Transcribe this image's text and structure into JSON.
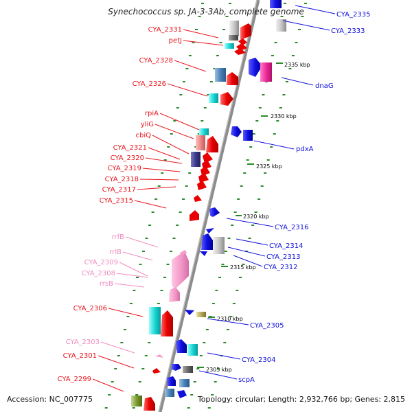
{
  "title": "Synechococcus sp. JA-3-3Ab, complete genome",
  "accession": "Accession: NC_007775",
  "topology": "Topology: circular; Length: 2,932,766 bp; Genes: 2,815",
  "colors": {
    "forward_label": "#e8141c",
    "reverse_label": "#1010dd",
    "rna_label": "#f08cbe",
    "backbone": "#8c8c8c",
    "tick": "#2a8a2a"
  },
  "scale_ticks": [
    {
      "label": "2335 kbp"
    },
    {
      "label": "2330 kbp"
    },
    {
      "label": "2325 kbp"
    },
    {
      "label": "2320 kbp"
    },
    {
      "label": "2315 kbp"
    },
    {
      "label": "2310 kbp"
    },
    {
      "label": "2305 kbp"
    }
  ],
  "left_labels": [
    {
      "text": "CYA_2331",
      "type": "cds"
    },
    {
      "text": "petJ",
      "type": "cds"
    },
    {
      "text": "CYA_2328",
      "type": "cds"
    },
    {
      "text": "CYA_2326",
      "type": "cds"
    },
    {
      "text": "rpiA",
      "type": "cds"
    },
    {
      "text": "yliG",
      "type": "cds"
    },
    {
      "text": "cbiQ",
      "type": "cds"
    },
    {
      "text": "CYA_2321",
      "type": "cds"
    },
    {
      "text": "CYA_2320",
      "type": "cds"
    },
    {
      "text": "CYA_2319",
      "type": "cds"
    },
    {
      "text": "CYA_2318",
      "type": "cds"
    },
    {
      "text": "CYA_2317",
      "type": "cds"
    },
    {
      "text": "CYA_2315",
      "type": "cds"
    },
    {
      "text": "rrfB",
      "type": "rna"
    },
    {
      "text": "rrlB",
      "type": "rna"
    },
    {
      "text": "CYA_2309",
      "type": "rna"
    },
    {
      "text": "CYA_2308",
      "type": "rna"
    },
    {
      "text": "rrsB",
      "type": "rna"
    },
    {
      "text": "CYA_2306",
      "type": "cds"
    },
    {
      "text": "CYA_2303",
      "type": "rna"
    },
    {
      "text": "CYA_2301",
      "type": "cds"
    },
    {
      "text": "CYA_2299",
      "type": "cds"
    }
  ],
  "right_labels": [
    {
      "text": "CYA_2335"
    },
    {
      "text": "CYA_2333"
    },
    {
      "text": "dnaG"
    },
    {
      "text": "pdxA"
    },
    {
      "text": "CYA_2316"
    },
    {
      "text": "CYA_2314"
    },
    {
      "text": "CYA_2313"
    },
    {
      "text": "CYA_2312"
    },
    {
      "text": "CYA_2305"
    },
    {
      "text": "CYA_2304"
    },
    {
      "text": "scpA"
    }
  ]
}
